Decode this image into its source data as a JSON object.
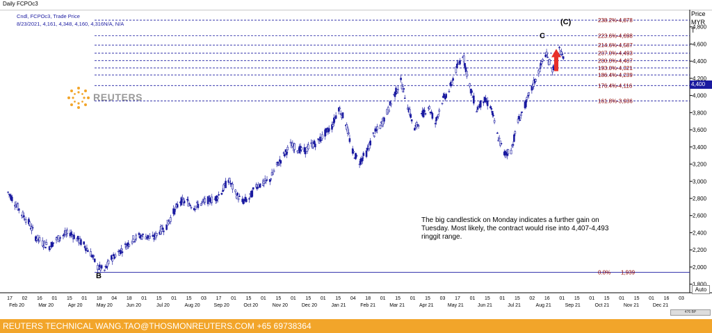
{
  "window": {
    "title": "Daily FCPOc3"
  },
  "legend": {
    "line1": "Cndl, FCPOc3, Trade Price",
    "line2": "8/23/2021, 4,161, 4,348, 4,160, 4,316N/A, N/A"
  },
  "price_axis": {
    "header_lines": [
      "Price",
      "MYR",
      "T"
    ],
    "current_value": "4,400"
  },
  "watermark": "REUTERS",
  "wave_labels": {
    "c_large": "(C)",
    "c": "C",
    "b": "B"
  },
  "annotation": "The big candlestick on Monday indicates a further gain on Tuesday.  Most likely, the contract would rise into 4,407-4,493 ringgit range.",
  "auto_button": "Auto",
  "scroll_text": "476  BP",
  "footer": "REUTERS TECHNICAL  WANG.TAO@THOSMONREUTERS.COM  +65 69738364",
  "colors": {
    "candle": "#1a1aa0",
    "fib_label": "#8b0000",
    "fib_line": "#1a1aa0",
    "arrow": "#e8302a",
    "footer_bg": "#f2a52a"
  },
  "chart_data": {
    "type": "candlestick",
    "title": "Daily FCPOc3",
    "ylabel": "Price MYR T",
    "ylim": [
      1700,
      5000
    ],
    "y_ticks": [
      1800,
      2000,
      2200,
      2400,
      2600,
      2800,
      3000,
      3200,
      3400,
      3600,
      3800,
      4000,
      4200,
      4400,
      4600,
      4800
    ],
    "y_tick_labels": [
      "1,800",
      "2,000",
      "2,200",
      "2,400",
      "2,600",
      "2,800",
      "3,000",
      "3,200",
      "3,400",
      "3,600",
      "3,800",
      "4,000",
      "4,200",
      "4,400",
      "4,600",
      "4,800"
    ],
    "x_day_labels": [
      "17",
      "02",
      "16",
      "01",
      "15",
      "01",
      "18",
      "04",
      "18",
      "01",
      "15",
      "01",
      "15",
      "03",
      "17",
      "01",
      "15",
      "01",
      "15",
      "01",
      "15",
      "01",
      "15",
      "04",
      "18",
      "01",
      "15",
      "01",
      "15",
      "03",
      "17",
      "01",
      "15",
      "01",
      "15",
      "02",
      "16",
      "01",
      "15",
      "01",
      "15",
      "01",
      "15",
      "01",
      "16",
      "03"
    ],
    "x_month_labels": [
      "Feb 20",
      "Mar 20",
      "Apr 20",
      "May 20",
      "Jun 20",
      "Jul 20",
      "Aug 20",
      "Sep 20",
      "Oct 20",
      "Nov 20",
      "Dec 20",
      "Jan 21",
      "Feb 21",
      "Mar 21",
      "Apr 21",
      "May 21",
      "Jun 21",
      "Jul 21",
      "Aug 21",
      "Sep 21",
      "Oct 21",
      "Nov 21",
      "Dec 21"
    ],
    "fib_levels": [
      {
        "label": "238.2%-4,878",
        "value": 4878
      },
      {
        "label": "223.6%-4,698",
        "value": 4698
      },
      {
        "label": "214.6%-4,587",
        "value": 4587
      },
      {
        "label": "207.0%-4,493",
        "value": 4493
      },
      {
        "label": "200.0%-4,407",
        "value": 4407
      },
      {
        "label": "193.0%-4,321",
        "value": 4321
      },
      {
        "label": "186.4%-4,239",
        "value": 4239
      },
      {
        "label": "176.4%-4,116",
        "value": 4116
      },
      {
        "label": "161.8%-3,936",
        "value": 3936
      },
      {
        "label": "0.0%",
        "value": 1939
      }
    ],
    "zero_level_value_label": "1,939",
    "price_path": [
      [
        "2020-02-03",
        2870
      ],
      [
        "2020-02-10",
        2750
      ],
      [
        "2020-02-17",
        2620
      ],
      [
        "2020-02-24",
        2520
      ],
      [
        "2020-03-02",
        2350
      ],
      [
        "2020-03-09",
        2280
      ],
      [
        "2020-03-16",
        2240
      ],
      [
        "2020-03-23",
        2320
      ],
      [
        "2020-03-30",
        2370
      ],
      [
        "2020-04-06",
        2400
      ],
      [
        "2020-04-13",
        2330
      ],
      [
        "2020-04-20",
        2260
      ],
      [
        "2020-04-27",
        2160
      ],
      [
        "2020-05-04",
        2000
      ],
      [
        "2020-05-11",
        1960
      ],
      [
        "2020-05-18",
        2100
      ],
      [
        "2020-05-25",
        2170
      ],
      [
        "2020-06-01",
        2240
      ],
      [
        "2020-06-08",
        2320
      ],
      [
        "2020-06-15",
        2360
      ],
      [
        "2020-06-22",
        2360
      ],
      [
        "2020-06-29",
        2330
      ],
      [
        "2020-07-06",
        2420
      ],
      [
        "2020-07-13",
        2480
      ],
      [
        "2020-07-20",
        2640
      ],
      [
        "2020-07-27",
        2770
      ],
      [
        "2020-08-03",
        2760
      ],
      [
        "2020-08-10",
        2700
      ],
      [
        "2020-08-17",
        2740
      ],
      [
        "2020-08-24",
        2780
      ],
      [
        "2020-08-31",
        2790
      ],
      [
        "2020-09-07",
        2880
      ],
      [
        "2020-09-14",
        3020
      ],
      [
        "2020-09-21",
        2860
      ],
      [
        "2020-09-28",
        2760
      ],
      [
        "2020-10-05",
        2800
      ],
      [
        "2020-10-12",
        2950
      ],
      [
        "2020-10-19",
        2970
      ],
      [
        "2020-10-26",
        3020
      ],
      [
        "2020-11-02",
        3180
      ],
      [
        "2020-11-09",
        3300
      ],
      [
        "2020-11-16",
        3420
      ],
      [
        "2020-11-23",
        3380
      ],
      [
        "2020-11-30",
        3350
      ],
      [
        "2020-12-07",
        3420
      ],
      [
        "2020-12-14",
        3460
      ],
      [
        "2020-12-21",
        3560
      ],
      [
        "2020-12-28",
        3640
      ],
      [
        "2021-01-04",
        3860
      ],
      [
        "2021-01-11",
        3680
      ],
      [
        "2021-01-18",
        3340
      ],
      [
        "2021-01-25",
        3230
      ],
      [
        "2021-02-01",
        3330
      ],
      [
        "2021-02-08",
        3540
      ],
      [
        "2021-02-15",
        3640
      ],
      [
        "2021-02-22",
        3800
      ],
      [
        "2021-03-01",
        4000
      ],
      [
        "2021-03-08",
        4160
      ],
      [
        "2021-03-15",
        3880
      ],
      [
        "2021-03-22",
        3600
      ],
      [
        "2021-03-29",
        3760
      ],
      [
        "2021-04-05",
        3880
      ],
      [
        "2021-04-12",
        3680
      ],
      [
        "2021-04-19",
        3940
      ],
      [
        "2021-04-26",
        4060
      ],
      [
        "2021-05-03",
        4300
      ],
      [
        "2021-05-10",
        4480
      ],
      [
        "2021-05-17",
        4100
      ],
      [
        "2021-05-24",
        3840
      ],
      [
        "2021-05-31",
        3950
      ],
      [
        "2021-06-07",
        3880
      ],
      [
        "2021-06-14",
        3540
      ],
      [
        "2021-06-21",
        3320
      ],
      [
        "2021-06-28",
        3360
      ],
      [
        "2021-07-05",
        3700
      ],
      [
        "2021-07-12",
        3880
      ],
      [
        "2021-07-19",
        4080
      ],
      [
        "2021-07-26",
        4280
      ],
      [
        "2021-08-02",
        4490
      ],
      [
        "2021-08-09",
        4300
      ],
      [
        "2021-08-16",
        4540
      ],
      [
        "2021-08-23",
        4316
      ]
    ]
  }
}
